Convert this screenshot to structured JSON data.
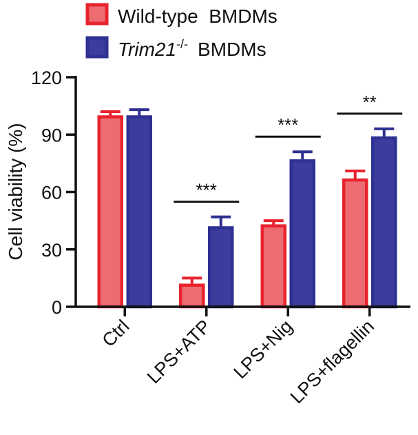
{
  "chart_data": {
    "type": "bar",
    "categories": [
      "Ctrl",
      "LPS+ATP",
      "LPS+Nig",
      "LPS+flagellin"
    ],
    "series": [
      {
        "name": "Wild-type  BMDMs",
        "values": [
          100,
          12,
          43,
          67
        ],
        "errors": [
          2,
          3,
          2,
          4
        ],
        "fill": "#ec6c72",
        "stroke": "#e8232e"
      },
      {
        "name": "BMDMs",
        "name_italic": "Trim21",
        "name_sup": "-/-",
        "values": [
          100,
          42,
          77,
          89
        ],
        "errors": [
          3,
          5,
          4,
          4
        ],
        "fill": "#3c3c9c",
        "stroke": "#2e3192"
      }
    ],
    "significance": [
      {
        "category": "LPS+ATP",
        "label": "***"
      },
      {
        "category": "LPS+Nig",
        "label": "***"
      },
      {
        "category": "LPS+flagellin",
        "label": "**"
      }
    ],
    "ylabel": "Cell viability (%)",
    "xlabel": "",
    "title": "",
    "ylim": [
      0,
      120
    ],
    "yticks": [
      0,
      30,
      60,
      90,
      120
    ],
    "grid": false,
    "legend_position": "top"
  }
}
